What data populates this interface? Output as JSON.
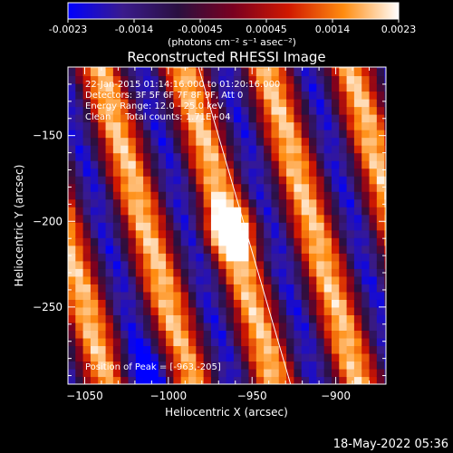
{
  "colorbar": {
    "ticks": [
      "-0.0023",
      "-0.0014",
      "-0.00045",
      "0.00045",
      "0.0014",
      "0.0023"
    ],
    "units_label": "(photons cm⁻² s⁻¹ asec⁻²)",
    "range": [
      -0.0023,
      0.0023
    ],
    "stops": [
      "#0000ff",
      "#3a1b8c",
      "#2a1040",
      "#7a0020",
      "#d01800",
      "#ff8c10",
      "#ffffff"
    ]
  },
  "chart_data": {
    "type": "heatmap",
    "title": "Reconstructed RHESSI Image",
    "xlabel": "Heliocentric X (arcsec)",
    "ylabel": "Heliocentric Y (arcsec)",
    "xlim": [
      -1060,
      -870
    ],
    "ylim": [
      -295,
      -110
    ],
    "xticks": [
      -1050,
      -1000,
      -950,
      -900
    ],
    "xtick_labels": [
      "−1050",
      "−1000",
      "−950",
      "−900"
    ],
    "yticks": [
      -150,
      -200,
      -250
    ],
    "ytick_labels": [
      "−150",
      "−200",
      "−250"
    ],
    "value_range": [
      -0.0023,
      0.0023
    ],
    "peak": {
      "x": -963,
      "y": -205,
      "value": 0.0023
    },
    "stripe_tilt_dx_per_dy": -0.3,
    "stripe_period_arcsec": 50,
    "limb_line": [
      [
        -982,
        -110
      ],
      [
        -927,
        -295
      ]
    ],
    "annotations": [
      "22-Jan-2015 01:14:16.000 to 01:20:16.000",
      "Detectors: 3F 5F 6F 7F 8F 9F, Att 0",
      "Energy Range: 12.0 - 25.0 keV",
      "Clean     Total counts: 1.71E+04"
    ],
    "peak_label": "Position of Peak = [-963,-205]"
  },
  "footer": {
    "date": "18-May-2022 05:36"
  }
}
